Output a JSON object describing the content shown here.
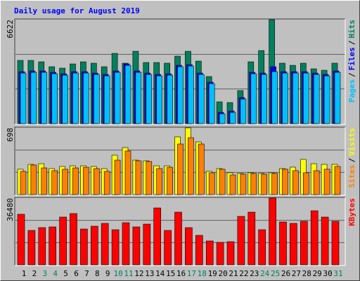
{
  "title": "Daily usage for August 2019",
  "legend_separator": "/",
  "chart_data": [
    {
      "type": "bar",
      "ylim": [
        0,
        6622
      ],
      "yticks": [
        6622
      ],
      "series": [
        {
          "name": "Hits",
          "color": "#00805c",
          "values": [
            4027,
            4027,
            3937,
            3624,
            3534,
            3803,
            3937,
            3848,
            3624,
            4474,
            3848,
            4608,
            3892,
            3892,
            3848,
            4295,
            4608,
            3982,
            2998,
            1387,
            1342,
            2103,
            3937,
            4653,
            6622,
            3848,
            3713,
            3848,
            3490,
            3400,
            3848
          ]
        },
        {
          "name": "Files",
          "color": "#0000ff",
          "values": [
            3310,
            3356,
            3356,
            3266,
            3177,
            3310,
            3310,
            3221,
            3132,
            3356,
            3803,
            3356,
            3221,
            3132,
            3177,
            3713,
            3758,
            3221,
            2640,
            716,
            806,
            1656,
            3266,
            3221,
            3624,
            3310,
            3310,
            3310,
            3221,
            3132,
            3356
          ]
        },
        {
          "name": "Pages",
          "color": "#00c0ff",
          "values": [
            3221,
            3266,
            3266,
            3177,
            3087,
            3221,
            3221,
            3132,
            3042,
            3266,
            3713,
            3266,
            3132,
            3042,
            3087,
            3624,
            3669,
            3132,
            2550,
            626,
            716,
            1566,
            3177,
            3132,
            3311,
            3221,
            3221,
            3221,
            3132,
            3042,
            3266
          ]
        }
      ]
    },
    {
      "type": "bar",
      "ylim": [
        0,
        698
      ],
      "yticks": [
        698
      ],
      "series": [
        {
          "name": "Visits",
          "color": "#ffff00",
          "values": [
            265,
            316,
            323,
            272,
            294,
            301,
            301,
            294,
            272,
            412,
            492,
            360,
            353,
            301,
            301,
            603,
            698,
            551,
            243,
            272,
            228,
            221,
            228,
            221,
            228,
            272,
            287,
            368,
            323,
            316,
            316
          ]
        },
        {
          "name": "Sites",
          "color": "#ff8000",
          "values": [
            243,
            309,
            279,
            250,
            265,
            279,
            286,
            272,
            243,
            360,
            456,
            353,
            346,
            272,
            286,
            529,
            595,
            529,
            228,
            265,
            206,
            214,
            221,
            214,
            221,
            265,
            250,
            228,
            250,
            265,
            294
          ]
        }
      ]
    },
    {
      "type": "bar",
      "ylim": [
        0,
        36480
      ],
      "yticks": [
        36480
      ],
      "categories": [
        "1",
        "2",
        "3",
        "4",
        "5",
        "6",
        "7",
        "8",
        "9",
        "10",
        "11",
        "12",
        "13",
        "14",
        "15",
        "16",
        "17",
        "18",
        "19",
        "20",
        "21",
        "22",
        "23",
        "24",
        "25",
        "26",
        "27",
        "28",
        "29",
        "30",
        "31"
      ],
      "x_label_colors": [
        "#000000",
        "#000000",
        "#00805c",
        "#00805c",
        "#000000",
        "#000000",
        "#000000",
        "#000000",
        "#000000",
        "#00805c",
        "#00805c",
        "#000000",
        "#000000",
        "#000000",
        "#000000",
        "#000000",
        "#00805c",
        "#00805c",
        "#000000",
        "#000000",
        "#000000",
        "#000000",
        "#000000",
        "#00805c",
        "#00805c",
        "#000000",
        "#000000",
        "#000000",
        "#000000",
        "#000000",
        "#00805c"
      ],
      "series": [
        {
          "name": "KBytes",
          "color": "#ff0000",
          "values": [
            27648,
            18816,
            20352,
            20736,
            26112,
            28032,
            19584,
            21120,
            22656,
            19200,
            23040,
            20736,
            22272,
            31104,
            18816,
            28800,
            20352,
            16128,
            13056,
            12288,
            12672,
            26496,
            28800,
            19200,
            36480,
            23424,
            22656,
            23808,
            29568,
            26112,
            23808
          ]
        }
      ]
    }
  ]
}
